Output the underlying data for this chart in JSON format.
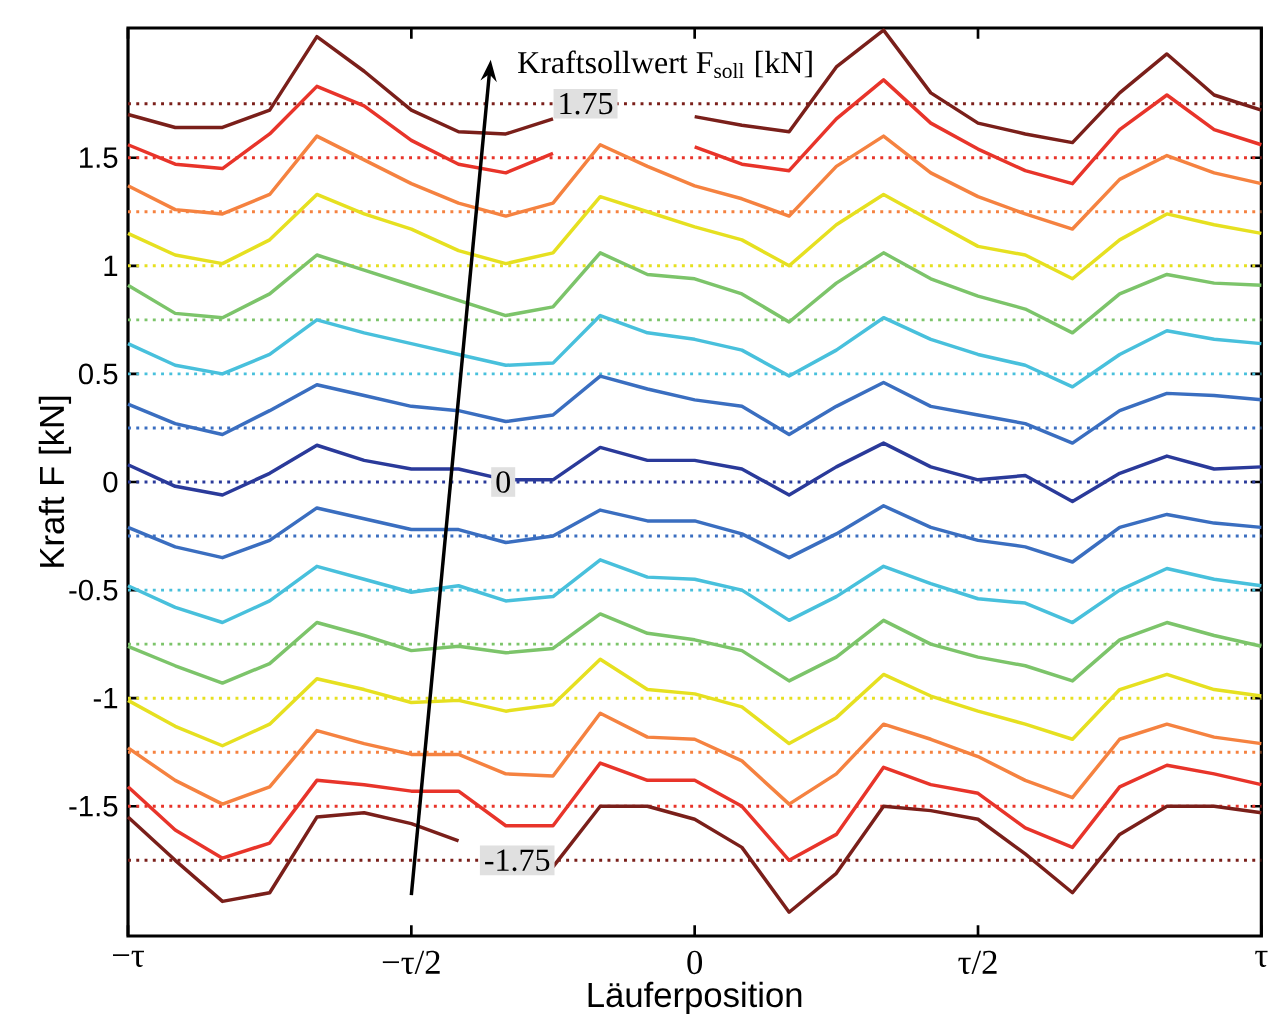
{
  "chart_data": {
    "type": "line",
    "xlabel": "Läuferposition",
    "ylabel": "Kraft F [kN]",
    "categories": [
      "−τ",
      null,
      null,
      null,
      null,
      null,
      "−τ/2",
      null,
      null,
      null,
      null,
      null,
      "0",
      null,
      null,
      null,
      null,
      null,
      "τ/2",
      null,
      null,
      null,
      null,
      null,
      "τ"
    ],
    "ylim": [
      -2.1,
      2.1
    ],
    "yticks": [
      -1.5,
      -1,
      -0.5,
      0,
      0.5,
      1,
      1.5
    ],
    "series": [
      {
        "color": "#7a1f1a",
        "values": [
          1.7,
          1.64,
          1.64,
          1.72,
          2.06,
          1.9,
          1.72,
          1.62,
          1.61,
          1.68,
          null,
          null,
          1.69,
          1.65,
          1.62,
          1.92,
          2.09,
          1.8,
          1.66,
          1.61,
          1.57,
          1.8,
          1.98,
          1.79,
          1.72
        ]
      },
      {
        "color": "#e8342a",
        "values": [
          1.56,
          1.47,
          1.45,
          1.61,
          1.83,
          1.74,
          1.58,
          1.47,
          1.43,
          1.52,
          null,
          null,
          1.55,
          1.47,
          1.44,
          1.68,
          1.86,
          1.66,
          1.54,
          1.44,
          1.38,
          1.63,
          1.79,
          1.63,
          1.56
        ]
      },
      {
        "color": "#f58240",
        "values": [
          1.37,
          1.26,
          1.24,
          1.33,
          1.6,
          1.49,
          1.38,
          1.29,
          1.23,
          1.29,
          1.56,
          1.46,
          1.37,
          1.31,
          1.23,
          1.46,
          1.6,
          1.43,
          1.32,
          1.24,
          1.17,
          1.4,
          1.51,
          1.43,
          1.38
        ]
      },
      {
        "color": "#e6e020",
        "values": [
          1.15,
          1.05,
          1.01,
          1.12,
          1.33,
          1.24,
          1.17,
          1.07,
          1.01,
          1.06,
          1.32,
          1.25,
          1.18,
          1.12,
          1.0,
          1.19,
          1.33,
          1.21,
          1.09,
          1.05,
          0.94,
          1.12,
          1.24,
          1.19,
          1.15
        ]
      },
      {
        "color": "#7cc46a",
        "values": [
          0.91,
          0.78,
          0.76,
          0.87,
          1.05,
          0.98,
          0.91,
          0.84,
          0.77,
          0.81,
          1.06,
          0.96,
          0.94,
          0.87,
          0.74,
          0.92,
          1.06,
          0.94,
          0.86,
          0.8,
          0.69,
          0.87,
          0.96,
          0.92,
          0.91
        ]
      },
      {
        "color": "#48c0dc",
        "values": [
          0.64,
          0.54,
          0.5,
          0.59,
          0.75,
          0.69,
          0.64,
          0.59,
          0.54,
          0.55,
          0.77,
          0.69,
          0.66,
          0.61,
          0.49,
          0.61,
          0.76,
          0.66,
          0.59,
          0.54,
          0.44,
          0.59,
          0.7,
          0.66,
          0.64
        ]
      },
      {
        "color": "#3a6ec0",
        "values": [
          0.36,
          0.27,
          0.22,
          0.33,
          0.45,
          0.4,
          0.35,
          0.33,
          0.28,
          0.31,
          0.49,
          0.43,
          0.38,
          0.35,
          0.22,
          0.35,
          0.46,
          0.35,
          0.31,
          0.27,
          0.18,
          0.33,
          0.41,
          0.4,
          0.38
        ]
      },
      {
        "color": "#2a3a9a",
        "values": [
          0.08,
          -0.02,
          -0.06,
          0.04,
          0.17,
          0.1,
          0.06,
          0.06,
          0.01,
          0.01,
          0.16,
          0.1,
          0.1,
          0.06,
          -0.06,
          0.07,
          0.18,
          0.07,
          0.01,
          0.03,
          -0.09,
          0.04,
          0.12,
          0.06,
          0.07
        ]
      },
      {
        "color": "#3a6ec0",
        "values": [
          -0.21,
          -0.3,
          -0.35,
          -0.27,
          -0.12,
          -0.17,
          -0.22,
          -0.22,
          -0.28,
          -0.25,
          -0.13,
          -0.18,
          -0.18,
          -0.24,
          -0.35,
          -0.24,
          -0.11,
          -0.21,
          -0.27,
          -0.3,
          -0.37,
          -0.21,
          -0.15,
          -0.19,
          -0.21
        ]
      },
      {
        "color": "#48c0dc",
        "values": [
          -0.48,
          -0.58,
          -0.65,
          -0.55,
          -0.39,
          -0.45,
          -0.51,
          -0.48,
          -0.55,
          -0.53,
          -0.36,
          -0.44,
          -0.45,
          -0.5,
          -0.64,
          -0.53,
          -0.39,
          -0.47,
          -0.54,
          -0.56,
          -0.65,
          -0.5,
          -0.4,
          -0.45,
          -0.48
        ]
      },
      {
        "color": "#7cc46a",
        "values": [
          -0.76,
          -0.85,
          -0.93,
          -0.84,
          -0.65,
          -0.71,
          -0.78,
          -0.76,
          -0.79,
          -0.77,
          -0.61,
          -0.7,
          -0.73,
          -0.78,
          -0.92,
          -0.81,
          -0.64,
          -0.75,
          -0.81,
          -0.85,
          -0.92,
          -0.73,
          -0.65,
          -0.71,
          -0.76
        ]
      },
      {
        "color": "#e6e020",
        "values": [
          -1.01,
          -1.13,
          -1.22,
          -1.12,
          -0.91,
          -0.96,
          -1.02,
          -1.01,
          -1.06,
          -1.03,
          -0.82,
          -0.96,
          -0.98,
          -1.04,
          -1.21,
          -1.09,
          -0.89,
          -0.99,
          -1.06,
          -1.12,
          -1.19,
          -0.96,
          -0.89,
          -0.96,
          -0.99
        ]
      },
      {
        "color": "#f58240",
        "values": [
          -1.23,
          -1.38,
          -1.49,
          -1.41,
          -1.15,
          -1.21,
          -1.26,
          -1.26,
          -1.35,
          -1.36,
          -1.07,
          -1.18,
          -1.19,
          -1.29,
          -1.49,
          -1.35,
          -1.12,
          -1.19,
          -1.27,
          -1.38,
          -1.46,
          -1.19,
          -1.12,
          -1.18,
          -1.21
        ]
      },
      {
        "color": "#e8342a",
        "values": [
          -1.41,
          -1.61,
          -1.74,
          -1.67,
          -1.38,
          -1.4,
          -1.43,
          -1.43,
          -1.59,
          -1.59,
          -1.3,
          -1.38,
          -1.38,
          -1.5,
          -1.75,
          -1.63,
          -1.32,
          -1.4,
          -1.44,
          -1.6,
          -1.69,
          -1.41,
          -1.31,
          -1.35,
          -1.4
        ]
      },
      {
        "color": "#7a1f1a",
        "values": [
          -1.55,
          -1.75,
          -1.94,
          -1.9,
          -1.55,
          -1.53,
          -1.58,
          -1.66,
          null,
          -1.78,
          -1.5,
          -1.5,
          -1.56,
          -1.69,
          -1.99,
          -1.81,
          -1.5,
          -1.52,
          -1.56,
          -1.72,
          -1.9,
          -1.63,
          -1.5,
          -1.5,
          -1.53
        ]
      }
    ],
    "ref_lines": [
      {
        "axis": "y",
        "value": 1.75,
        "color": "#7a1f1a",
        "line_style": "dotted"
      },
      {
        "axis": "y",
        "value": 1.5,
        "color": "#e8342a",
        "line_style": "dotted"
      },
      {
        "axis": "y",
        "value": 1.25,
        "color": "#f58240",
        "line_style": "dotted"
      },
      {
        "axis": "y",
        "value": 1.0,
        "color": "#e6e020",
        "line_style": "dotted"
      },
      {
        "axis": "y",
        "value": 0.75,
        "color": "#7cc46a",
        "line_style": "dotted"
      },
      {
        "axis": "y",
        "value": 0.5,
        "color": "#48c0dc",
        "line_style": "dotted"
      },
      {
        "axis": "y",
        "value": 0.25,
        "color": "#3a6ec0",
        "line_style": "dotted"
      },
      {
        "axis": "y",
        "value": 0,
        "color": "#2a3a9a",
        "line_style": "dotted"
      },
      {
        "axis": "y",
        "value": -0.25,
        "color": "#3a6ec0",
        "line_style": "dotted"
      },
      {
        "axis": "y",
        "value": -0.5,
        "color": "#48c0dc",
        "line_style": "dotted"
      },
      {
        "axis": "y",
        "value": -0.75,
        "color": "#7cc46a",
        "line_style": "dotted"
      },
      {
        "axis": "y",
        "value": -1.0,
        "color": "#e6e020",
        "line_style": "dotted"
      },
      {
        "axis": "y",
        "value": -1.25,
        "color": "#f58240",
        "line_style": "dotted"
      },
      {
        "axis": "y",
        "value": -1.5,
        "color": "#e8342a",
        "line_style": "dotted"
      },
      {
        "axis": "y",
        "value": -1.75,
        "color": "#7a1f1a",
        "line_style": "dotted"
      }
    ],
    "annotations": [
      "Kraftsollwert F$_{soll}$ [kN]",
      {
        "text": "1.75",
        "y": 1.75
      },
      {
        "text": "0",
        "y": 0
      },
      {
        "text": "-1.75",
        "y": -1.75
      }
    ]
  }
}
